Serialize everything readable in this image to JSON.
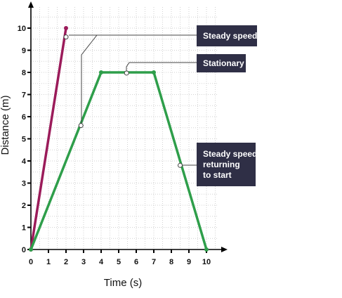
{
  "chart_data": {
    "type": "line",
    "xlabel": "Time (s)",
    "ylabel": "Distance (m)",
    "xlim": [
      0,
      10
    ],
    "ylim": [
      0,
      10
    ],
    "x_ticks": [
      "0",
      "1",
      "2",
      "3",
      "4",
      "5",
      "6",
      "7",
      "8",
      "9",
      "10"
    ],
    "y_ticks": [
      "0",
      "1",
      "2",
      "3",
      "4",
      "5",
      "6",
      "7",
      "8",
      "9",
      "10"
    ],
    "grid": true,
    "series": [
      {
        "color": "#9b1b5a",
        "x": [
          0,
          2
        ],
        "y": [
          0,
          10
        ]
      },
      {
        "color": "#2e9e4a",
        "x": [
          0,
          4,
          7,
          10
        ],
        "y": [
          0,
          8,
          8,
          0
        ]
      }
    ],
    "annotations": [
      {
        "lines": [
          "Steady speed"
        ],
        "targets": [
          {
            "x": 2,
            "y": 9.6
          },
          {
            "x": 2.85,
            "y": 5.6
          }
        ]
      },
      {
        "lines": [
          "Stationary"
        ],
        "targets": [
          {
            "x": 5.45,
            "y": 7.97
          }
        ]
      },
      {
        "lines": [
          "Steady speed",
          "returning",
          "to start"
        ],
        "targets": [
          {
            "x": 8.5,
            "y": 3.8
          }
        ]
      }
    ]
  }
}
